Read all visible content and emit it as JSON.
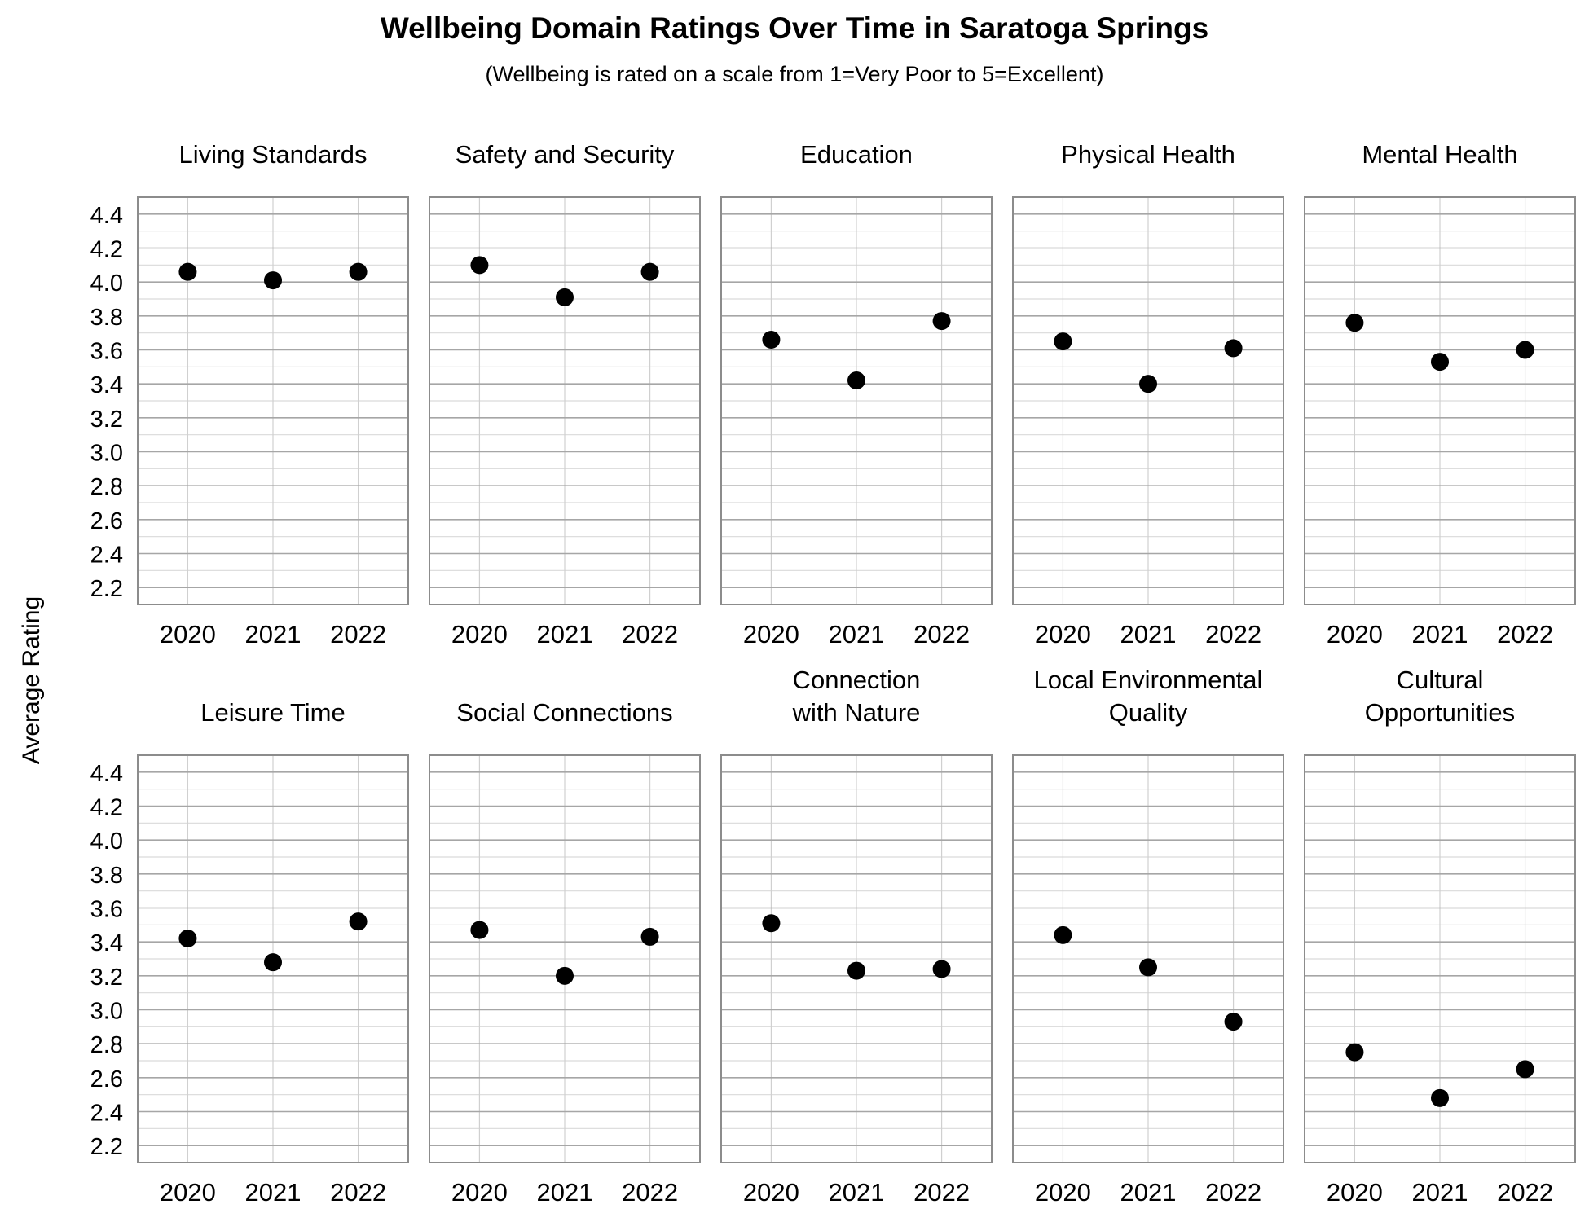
{
  "chart_data": {
    "type": "scatter",
    "title": "Wellbeing Domain Ratings Over Time in Saratoga Springs",
    "subtitle": "(Wellbeing is rated on a scale from 1=Very Poor to 5=Excellent)",
    "ylabel": "Average Rating",
    "xlabel": "",
    "categories": [
      "2020",
      "2021",
      "2022"
    ],
    "ylim": [
      2.1,
      4.5
    ],
    "yticks": [
      "2.2",
      "2.4",
      "2.6",
      "2.8",
      "3.0",
      "3.2",
      "3.4",
      "3.6",
      "3.8",
      "4.0",
      "4.2",
      "4.4"
    ],
    "grid": true,
    "marker_color": "#000000",
    "panels": [
      {
        "name": "Living Standards",
        "title_lines": [
          "Living Standards"
        ],
        "values": [
          4.06,
          4.01,
          4.06
        ]
      },
      {
        "name": "Safety and Security",
        "title_lines": [
          "Safety and Security"
        ],
        "values": [
          4.1,
          3.91,
          4.06
        ]
      },
      {
        "name": "Education",
        "title_lines": [
          "Education"
        ],
        "values": [
          3.66,
          3.42,
          3.77
        ]
      },
      {
        "name": "Physical Health",
        "title_lines": [
          "Physical Health"
        ],
        "values": [
          3.65,
          3.4,
          3.61
        ]
      },
      {
        "name": "Mental Health",
        "title_lines": [
          "Mental Health"
        ],
        "values": [
          3.76,
          3.53,
          3.6
        ]
      },
      {
        "name": "Leisure Time",
        "title_lines": [
          "Leisure Time"
        ],
        "values": [
          3.42,
          3.28,
          3.52
        ]
      },
      {
        "name": "Social Connections",
        "title_lines": [
          "Social Connections"
        ],
        "values": [
          3.47,
          3.2,
          3.43
        ]
      },
      {
        "name": "Connection with Nature",
        "title_lines": [
          "Connection",
          "with Nature"
        ],
        "values": [
          3.51,
          3.23,
          3.24
        ]
      },
      {
        "name": "Local Environmental Quality",
        "title_lines": [
          "Local Environmental",
          "Quality"
        ],
        "values": [
          3.44,
          3.25,
          2.93
        ]
      },
      {
        "name": "Cultural Opportunities",
        "title_lines": [
          "Cultural",
          "Opportunities"
        ],
        "values": [
          2.75,
          2.48,
          2.65
        ]
      }
    ]
  }
}
